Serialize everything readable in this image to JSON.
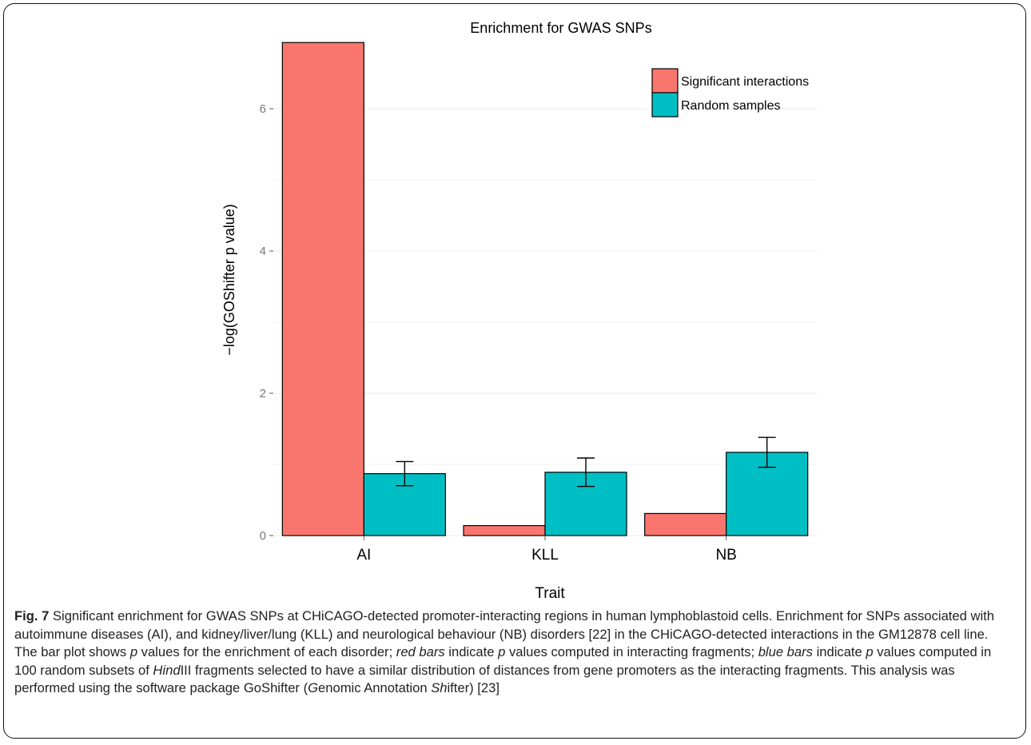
{
  "chart_data": {
    "type": "bar",
    "title": "Enrichment for GWAS SNPs",
    "xlabel": "Trait",
    "ylabel": "−log(GOShifter p value)",
    "categories": [
      "AI",
      "KLL",
      "NB"
    ],
    "ylim": [
      0,
      7
    ],
    "yticks": [
      0,
      2,
      4,
      6
    ],
    "grid": true,
    "legend_position": "top-right",
    "series": [
      {
        "name": "Significant interactions",
        "color": "#F8766D",
        "values": [
          6.93,
          0.14,
          0.31
        ],
        "errors": null
      },
      {
        "name": "Random samples",
        "color": "#00BFC4",
        "values": [
          0.87,
          0.89,
          1.17
        ],
        "errors": [
          [
            0.7,
            1.04
          ],
          [
            0.69,
            1.09
          ],
          [
            0.96,
            1.38
          ]
        ]
      }
    ]
  },
  "caption": {
    "fig_label": "Fig. 7",
    "s1": " Significant enrichment for GWAS SNPs at CHiCAGO-detected promoter-interacting regions in human lymphoblastoid cells. Enrichment for SNPs associated with autoimmune diseases (AI), and kidney/liver/lung (KLL) and neurological behaviour (NB) disorders [22] in the CHiCAGO-detected interactions in the GM12878 cell line. The bar plot shows ",
    "p1": "p",
    "s2": " values for the enrichment of each disorder; ",
    "red_bars": "red bars",
    "s3": " indicate ",
    "p2": "p",
    "s4": " values computed in interacting fragments; ",
    "blue_bars": "blue bars",
    "s5": " indicate ",
    "p3": "p",
    "s6": " values computed in 100 random subsets of ",
    "hind": "Hind",
    "s7": "III fragments selected to have a similar distribution of distances from gene promoters as the interacting fragments. This analysis was performed using the software package GoShifter (",
    "g": "G",
    "s8": "enomic Annotation ",
    "sh": "Sh",
    "s9": "ifter) [23]"
  }
}
